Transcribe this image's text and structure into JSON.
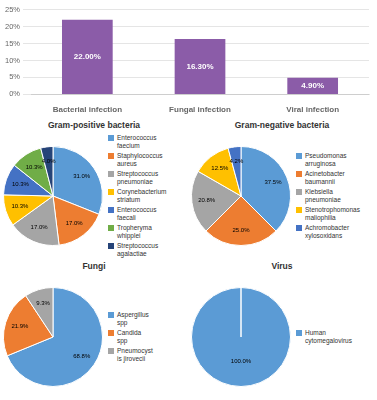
{
  "chart_data": [
    {
      "type": "bar",
      "categories": [
        "Bacterial infection",
        "Fungal infection",
        "Viral infection"
      ],
      "values": [
        22.0,
        16.3,
        4.9
      ],
      "value_labels": [
        "22.00%",
        "16.30%",
        "4.90%"
      ],
      "data_labels": true,
      "color": "#8B5CA8",
      "ylim": [
        0,
        25
      ],
      "yticks": [
        {
          "value": 0,
          "label": "0%"
        },
        {
          "value": 5,
          "label": "5%"
        },
        {
          "value": 10,
          "label": "10%"
        },
        {
          "value": 15,
          "label": "15%"
        },
        {
          "value": 20,
          "label": "20%"
        },
        {
          "value": 25,
          "label": "25%"
        }
      ],
      "grid": true
    },
    {
      "type": "pie",
      "title": "Gram-positive bacteria",
      "categories": [
        "Enterococcus\nfaecium",
        "Staphylococcus\naureus",
        "Streptococcus\npneumoniae",
        "Corynebacterium\nstriatum",
        "Enterococcus\nfaecali",
        "Tropheryma\nwhipplei",
        "Streptococcus\nagalactiae"
      ],
      "values": [
        31.0,
        17.0,
        17.0,
        10.3,
        10.3,
        10.3,
        4.0
      ],
      "value_labels": [
        "31.0%",
        "17.0%",
        "17.0%",
        "10.3%",
        "10.3%",
        "10.3%",
        "4.0%"
      ],
      "data_labels": true,
      "colors": [
        "#5B9BD5",
        "#ED7D31",
        "#A5A5A5",
        "#FFC000",
        "#4472C4",
        "#70AD47",
        "#264478"
      ],
      "legend": "right"
    },
    {
      "type": "pie",
      "title": "Gram-negative bacteria",
      "categories": [
        "Pseudomonas\narruginosa",
        "Acinetobacter\nbaumannii",
        "Klebsiella\npneumoniae",
        "Stenotrophomonas\nmaliophilia",
        "Achromobacter\nxylosoxidans"
      ],
      "values": [
        37.5,
        25.0,
        20.8,
        12.5,
        4.2
      ],
      "value_labels": [
        "37.5%",
        "25.0%",
        "20.8%",
        "12.5%",
        "4.2%"
      ],
      "data_labels": true,
      "colors": [
        "#5B9BD5",
        "#ED7D31",
        "#A5A5A5",
        "#FFC000",
        "#4472C4"
      ],
      "legend": "right"
    },
    {
      "type": "pie",
      "title": "Fungi",
      "categories": [
        "Aspergillus\nspp",
        "Candida\nspp",
        "Pneumocyst\nis jirovecii"
      ],
      "values": [
        68.8,
        21.9,
        9.3
      ],
      "value_labels": [
        "68.8%",
        "21.9%",
        "9.3%"
      ],
      "data_labels": true,
      "colors": [
        "#5B9BD5",
        "#ED7D31",
        "#A5A5A5"
      ],
      "legend": "right"
    },
    {
      "type": "pie",
      "title": "Virus",
      "categories": [
        "Human\ncytomegalovirus"
      ],
      "values": [
        100.0
      ],
      "value_labels": [
        "100.0%"
      ],
      "data_labels": true,
      "colors": [
        "#5B9BD5"
      ],
      "legend": "right"
    }
  ]
}
